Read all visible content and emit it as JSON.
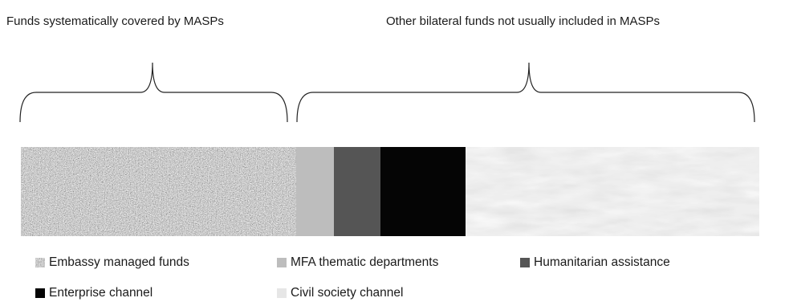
{
  "headers": {
    "left": "Funds systematically covered by MASPs",
    "right": "Other bilateral funds not usually included in MASPs"
  },
  "segments": [
    {
      "id": "embassy",
      "pattern": "granite"
    },
    {
      "id": "mfa",
      "color": "#bdbdbd"
    },
    {
      "id": "humanitarian",
      "color": "#555555"
    },
    {
      "id": "enterprise",
      "color": "#050505"
    },
    {
      "id": "civil",
      "pattern": "marble"
    }
  ],
  "legend": [
    {
      "id": "embassy",
      "label": "Embassy managed funds",
      "swatch": "granite"
    },
    {
      "id": "mfa",
      "label": "MFA thematic departments",
      "swatch": "#bdbdbd"
    },
    {
      "id": "humanitarian",
      "label": "Humanitarian assistance",
      "swatch": "#555555"
    },
    {
      "id": "enterprise",
      "label": "Enterprise channel",
      "swatch": "#050505"
    },
    {
      "id": "civil",
      "label": "Civil society channel",
      "swatch": "marble"
    }
  ]
}
